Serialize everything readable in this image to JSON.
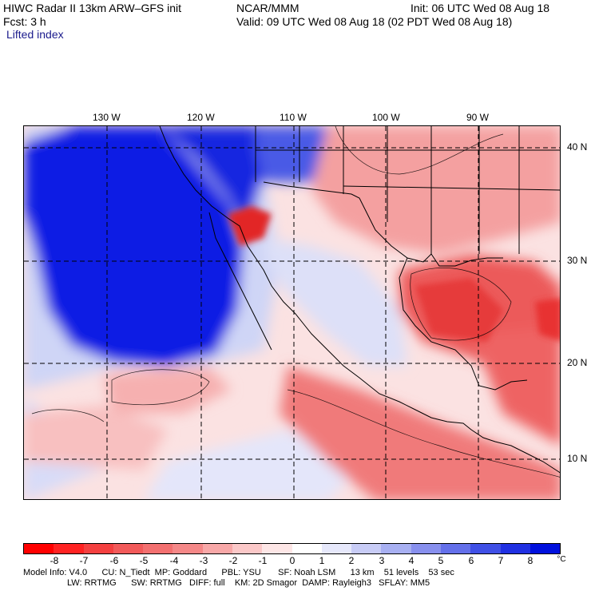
{
  "header": {
    "title": "HIWC Radar II 13km ARW–GFS init",
    "org": "NCAR/MMM",
    "init": "Init: 06 UTC Wed 08 Aug 18",
    "fcst": "Fcst:    3 h",
    "valid": "Valid: 09 UTC Wed 08 Aug 18 (02 PDT Wed 08 Aug 18)",
    "field": "Lifted index"
  },
  "map": {
    "lon_labels": [
      "130 W",
      "120 W",
      "110 W",
      "100 W",
      "90 W"
    ],
    "lat_labels": [
      "40 N",
      "30 N",
      "20 N",
      "10 N"
    ],
    "colors": {
      "ocean_deep_blue": "#0a1ee6",
      "light_blue": "#d8dcf8",
      "light_red": "#f8c8c8",
      "mid_red": "#f08080",
      "strong_red": "#e83a3a",
      "white": "#ffffff"
    }
  },
  "colorbar": {
    "ticks": [
      "-8",
      "-7",
      "-6",
      "-5",
      "-4",
      "-3",
      "-2",
      "-1",
      "0",
      "1",
      "2",
      "3",
      "4",
      "5",
      "6",
      "7",
      "8"
    ],
    "unit": "°C",
    "colors": [
      "#ff0000",
      "#ff2222",
      "#f44040",
      "#f25a5a",
      "#f37070",
      "#f58888",
      "#f8a8a8",
      "#fbc8c8",
      "#fde6e6",
      "#ffffff",
      "#e6e8fb",
      "#c8ccf6",
      "#a8b0f2",
      "#8890ee",
      "#6470ea",
      "#4050e6",
      "#2030e2",
      "#0010dd"
    ]
  },
  "footer": {
    "line1": "Model Info: V4.0      CU: N_Tiedt  MP: Goddard      PBL: YSU       SF: Noah LSM      13 km    51 levels    53 sec",
    "line2": "                  LW: RRTMG      SW: RRTMG   DIFF: full    KM: 2D Smagor  DAMP: Rayleigh3   SFLAY: MM5"
  }
}
